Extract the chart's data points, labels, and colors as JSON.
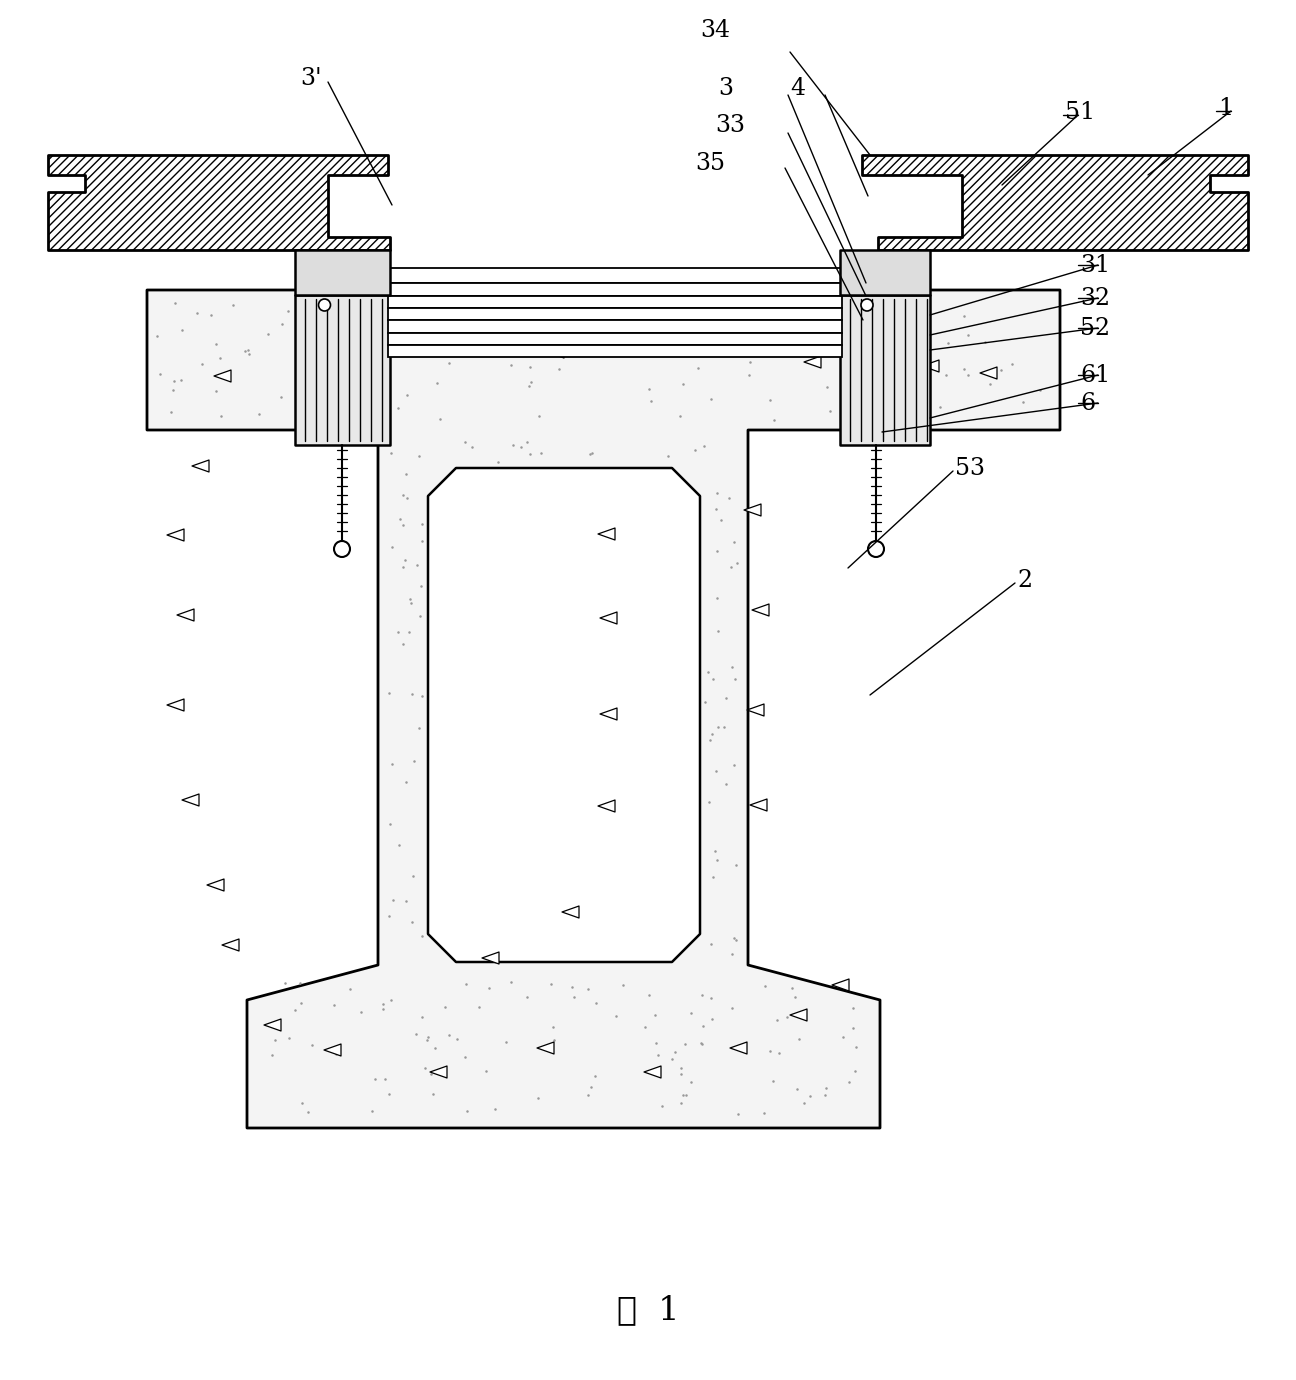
{
  "bg": "#ffffff",
  "lc": "#000000",
  "caption": "图  1",
  "label_fs": 17,
  "caption_fs": 24
}
